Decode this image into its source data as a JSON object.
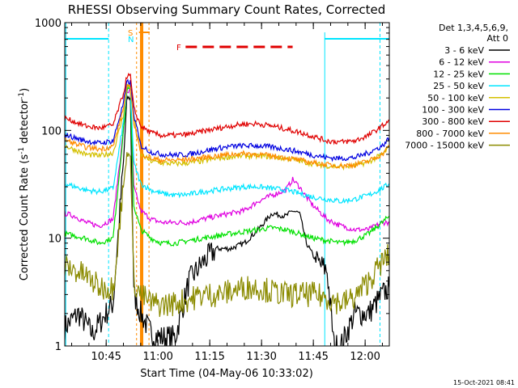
{
  "chart_data": {
    "type": "line",
    "title": "RHESSI Observing Summary Count Rates, Corrected",
    "ylabel_main": "Corrected Count Rate (s",
    "ylabel_sup1": "-1",
    "ylabel_mid": " detector",
    "ylabel_sup2": "-1",
    "ylabel_end": ")",
    "xlabel": "Start Time (04-May-06 10:33:02)",
    "x_unit": "minutes after 10:33:02",
    "xlim": [
      0,
      94
    ],
    "ylim": [
      1,
      1000
    ],
    "y_scale": "log",
    "x_ticks": [
      {
        "label": "10:45",
        "x": 12
      },
      {
        "label": "11:00",
        "x": 27
      },
      {
        "label": "11:15",
        "x": 42
      },
      {
        "label": "11:30",
        "x": 57
      },
      {
        "label": "11:45",
        "x": 72
      },
      {
        "label": "12:00",
        "x": 87
      }
    ],
    "y_ticks": [
      {
        "label": "1",
        "y": 1
      },
      {
        "label": "10",
        "y": 10
      },
      {
        "label": "100",
        "y": 100
      },
      {
        "label": "1000",
        "y": 1000
      }
    ],
    "legend_header": [
      "Det 1,3,4,5,6,9,",
      "Att 0"
    ],
    "legend_position": "right",
    "timestamp": "15-Oct-2021 08:41",
    "markers": {
      "S": {
        "label": "S",
        "color": "#ff8c00"
      },
      "N": {
        "label": "N",
        "color": "#00e5ff"
      },
      "F": {
        "label": "F",
        "color": "#e00000"
      }
    },
    "series": [
      {
        "name": "3 - 6 keV",
        "color": "#000000",
        "x": [
          0,
          4,
          8,
          14,
          17,
          18,
          19,
          20,
          22,
          25,
          28,
          32,
          36,
          40,
          44,
          48,
          52,
          56,
          60,
          64,
          66,
          68,
          70,
          73,
          76,
          78,
          80,
          84,
          88,
          92,
          94
        ],
        "y": [
          1.5,
          2,
          1.3,
          2.5,
          50,
          200,
          200,
          3,
          2,
          1.3,
          1.2,
          1.2,
          4,
          6,
          8,
          8,
          9,
          12,
          17,
          16,
          18,
          17,
          9,
          6,
          5,
          1,
          1,
          2,
          2,
          3,
          3.5
        ]
      },
      {
        "name": "6 - 12 keV",
        "color": "#e000e0",
        "x": [
          0,
          3,
          6,
          10,
          14,
          17,
          18,
          19,
          20,
          22,
          25,
          28,
          32,
          36,
          40,
          44,
          48,
          52,
          56,
          60,
          64,
          66,
          68,
          70,
          72,
          76,
          80,
          84,
          88,
          92,
          94
        ],
        "y": [
          17,
          16,
          14,
          13,
          15,
          100,
          230,
          230,
          30,
          18,
          15,
          14,
          14,
          14,
          15,
          16,
          17,
          18,
          22,
          25,
          28,
          35,
          30,
          24,
          20,
          15,
          13,
          12,
          12,
          14,
          14
        ]
      },
      {
        "name": "12 - 25 keV",
        "color": "#00e000",
        "x": [
          0,
          3,
          6,
          10,
          14,
          17,
          18,
          19,
          20,
          22,
          25,
          28,
          32,
          36,
          40,
          44,
          48,
          52,
          56,
          60,
          64,
          68,
          72,
          76,
          80,
          84,
          88,
          92,
          94
        ],
        "y": [
          11,
          10.5,
          10,
          9,
          10,
          100,
          240,
          240,
          20,
          12,
          10,
          9,
          9,
          9.5,
          10,
          10.5,
          11,
          11.5,
          12,
          12.5,
          12,
          11,
          10,
          9.5,
          9,
          9.5,
          11,
          14,
          16
        ]
      },
      {
        "name": "25 - 50 keV",
        "color": "#00e5ff",
        "x": [
          0,
          3,
          6,
          10,
          14,
          17,
          18,
          19,
          20,
          22,
          25,
          28,
          32,
          36,
          40,
          44,
          48,
          52,
          56,
          60,
          64,
          68,
          72,
          76,
          80,
          84,
          88,
          92,
          94
        ],
        "y": [
          32,
          30,
          28,
          27,
          29,
          120,
          250,
          250,
          50,
          32,
          28,
          26,
          25,
          25.5,
          27,
          28,
          29,
          30,
          30,
          29,
          28,
          26,
          24,
          23,
          22,
          23,
          25,
          29,
          32
        ]
      },
      {
        "name": "50 - 100 keV",
        "color": "#d4c000",
        "x": [
          0,
          3,
          6,
          10,
          14,
          17,
          18,
          19,
          20,
          22,
          25,
          28,
          32,
          36,
          40,
          44,
          48,
          52,
          56,
          60,
          64,
          68,
          72,
          76,
          80,
          84,
          88,
          92,
          94
        ],
        "y": [
          72,
          66,
          60,
          58,
          62,
          140,
          260,
          260,
          130,
          60,
          52,
          50,
          49,
          50,
          52,
          55,
          57,
          58,
          58,
          57,
          55,
          52,
          49,
          47,
          46,
          47,
          51,
          60,
          70
        ]
      },
      {
        "name": "100 - 300 keV",
        "color": "#0000e0",
        "x": [
          0,
          3,
          6,
          10,
          14,
          17,
          18,
          19,
          20,
          22,
          25,
          28,
          32,
          36,
          40,
          44,
          48,
          52,
          56,
          60,
          64,
          68,
          72,
          76,
          80,
          84,
          88,
          92,
          94
        ],
        "y": [
          92,
          85,
          80,
          76,
          80,
          180,
          280,
          280,
          140,
          72,
          63,
          60,
          59,
          60,
          64,
          68,
          71,
          72,
          72,
          70,
          67,
          63,
          59,
          56,
          55,
          56,
          62,
          72,
          85
        ]
      },
      {
        "name": "300 - 800 keV",
        "color": "#e00000",
        "x": [
          0,
          3,
          6,
          10,
          14,
          17,
          18,
          19,
          20,
          22,
          25,
          28,
          32,
          36,
          40,
          44,
          48,
          52,
          56,
          60,
          64,
          68,
          72,
          76,
          80,
          84,
          88,
          92,
          94
        ],
        "y": [
          130,
          120,
          110,
          105,
          112,
          220,
          320,
          320,
          160,
          110,
          95,
          90,
          90,
          92,
          98,
          104,
          110,
          115,
          115,
          110,
          103,
          96,
          88,
          80,
          78,
          80,
          90,
          110,
          125
        ]
      },
      {
        "name": "800 - 7000 keV",
        "color": "#ff8c00",
        "x": [
          0,
          3,
          6,
          10,
          14,
          17,
          18,
          19,
          20,
          22,
          25,
          28,
          32,
          36,
          40,
          44,
          48,
          52,
          56,
          60,
          64,
          68,
          72,
          76,
          80,
          84,
          88,
          92,
          94
        ],
        "y": [
          82,
          75,
          70,
          67,
          71,
          160,
          250,
          250,
          120,
          62,
          55,
          53,
          53,
          54,
          56,
          58,
          60,
          61,
          60,
          58,
          56,
          53,
          50,
          48,
          47,
          48,
          52,
          60,
          72
        ]
      },
      {
        "name": "7000 - 15000 keV",
        "color": "#8b8b00",
        "x": [
          0,
          3,
          6,
          10,
          14,
          17,
          18,
          19,
          20,
          22,
          25,
          28,
          32,
          36,
          40,
          44,
          48,
          52,
          56,
          60,
          64,
          68,
          72,
          76,
          80,
          84,
          88,
          92,
          94
        ],
        "y": [
          5.5,
          5,
          4.5,
          3.5,
          3.5,
          30,
          60,
          60,
          4,
          3,
          2.5,
          2.4,
          2.5,
          2.7,
          3,
          3,
          3.2,
          3.5,
          3.5,
          3.2,
          3,
          3,
          3,
          2.8,
          2.5,
          2.8,
          4,
          6,
          7
        ]
      }
    ]
  }
}
